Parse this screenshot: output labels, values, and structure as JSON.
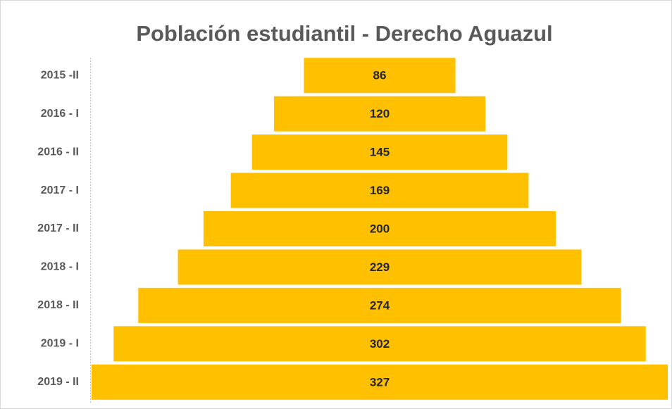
{
  "chart_data": {
    "type": "funnel",
    "title": "Población estudiantil - Derecho Aguazul",
    "categories": [
      "2015 -II",
      "2016 - I",
      "2016 - II",
      "2017 - I",
      "2017 - II",
      "2018 - I",
      "2018 - II",
      "2019 - I",
      "2019 - II"
    ],
    "values": [
      86,
      120,
      145,
      169,
      200,
      229,
      274,
      302,
      327
    ],
    "color": "#ffc000"
  }
}
